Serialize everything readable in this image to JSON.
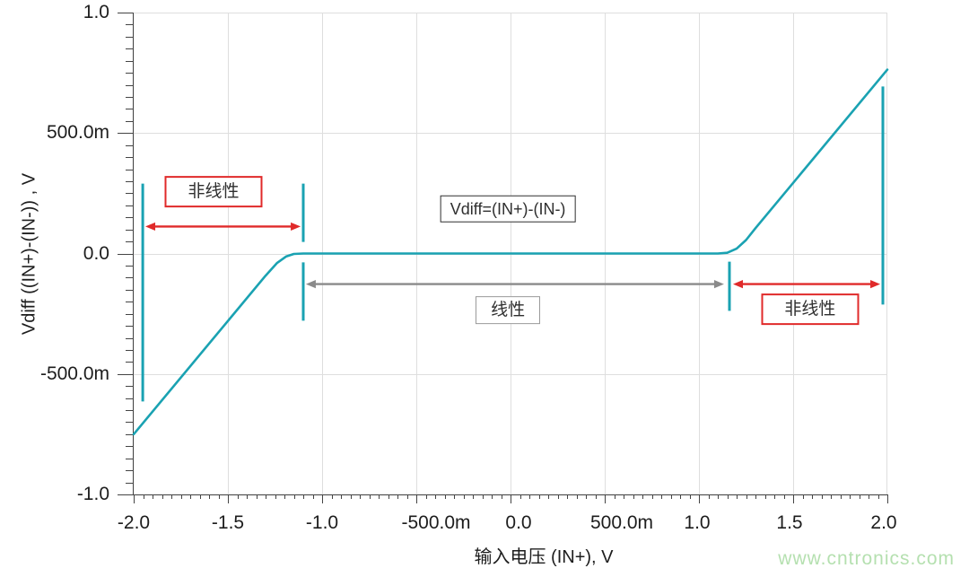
{
  "watermark": "www.cntronics.com",
  "chart_data": {
    "type": "line",
    "title": "",
    "xlabel": "输入电压  (IN+), V",
    "ylabel": "Vdiff ((IN+)-(IN-)) , V",
    "xlim": [
      -2.0,
      2.0
    ],
    "ylim": [
      -1.0,
      1.0
    ],
    "grid": true,
    "legend": "none",
    "line_color": "#1aa2b2",
    "axis_color": "#3f3f3f",
    "grid_color": "#dedede",
    "x_axis": {
      "min": -2.0,
      "max": 2.0,
      "minor_step": 0.05,
      "ticks": [
        {
          "v": -2.0,
          "label": "-2.0",
          "dx": 0
        },
        {
          "v": -1.5,
          "label": "-1.5",
          "dx": 0
        },
        {
          "v": -1.0,
          "label": "-1.0",
          "dx": 0
        },
        {
          "v": -0.5,
          "label": "-500.0m",
          "dx": 22
        },
        {
          "v": 0.0,
          "label": "0.0",
          "dx": 9
        },
        {
          "v": 0.5,
          "label": "500.0m",
          "dx": 19
        },
        {
          "v": 1.0,
          "label": "1.0",
          "dx": -2
        },
        {
          "v": 1.5,
          "label": "1.5",
          "dx": -4
        },
        {
          "v": 2.0,
          "label": "2.0",
          "dx": -4
        }
      ]
    },
    "y_axis": {
      "min": -1.0,
      "max": 1.0,
      "minor_step": 0.05,
      "ticks": [
        {
          "v": 1.0,
          "label": "1.0"
        },
        {
          "v": 0.5,
          "label": "500.0m"
        },
        {
          "v": 0.0,
          "label": "0.0"
        },
        {
          "v": -0.5,
          "label": "-500.0m"
        },
        {
          "v": -1.0,
          "label": "-1.0"
        }
      ]
    },
    "series": [
      {
        "name": "Vdiff",
        "color": "#1aa2b2",
        "points": [
          [
            -2.0,
            -0.75
          ],
          [
            -1.3,
            -0.092
          ],
          [
            -1.24,
            -0.04
          ],
          [
            -1.19,
            -0.012
          ],
          [
            -1.15,
            -0.002
          ],
          [
            -1.1,
            0.0
          ],
          [
            1.1,
            0.0
          ],
          [
            1.15,
            0.003
          ],
          [
            1.2,
            0.02
          ],
          [
            1.25,
            0.056
          ],
          [
            1.3,
            0.105
          ],
          [
            2.0,
            0.763
          ]
        ]
      }
    ],
    "markers": [
      {
        "x": -1.952,
        "y1": 0.29,
        "y2": -0.614
      },
      {
        "x": -1.1,
        "y1": 0.29,
        "y2": 0.048
      },
      {
        "x": -1.1,
        "y1": -0.037,
        "y2": -0.279
      },
      {
        "x": 1.162,
        "y1": -0.034,
        "y2": -0.238
      },
      {
        "x": 1.976,
        "y1": 0.693,
        "y2": -0.212
      }
    ],
    "annotations": {
      "arrows": [
        {
          "id": "nonlinear-left",
          "x1": -1.938,
          "x2": -1.114,
          "y": 0.112,
          "color": "#e02a2a"
        },
        {
          "id": "linear",
          "x1": -1.086,
          "x2": 1.133,
          "y": -0.127,
          "color": "#8a8a8a"
        },
        {
          "id": "nonlinear-right",
          "x1": 1.181,
          "x2": 1.962,
          "y": -0.127,
          "color": "#e02a2a"
        }
      ],
      "labels": [
        {
          "id": "nonlinear-left",
          "text": "非线性",
          "x": -1.576,
          "y": 0.257,
          "style": "red"
        },
        {
          "id": "formula",
          "text": "Vdiff=(IN+)-(IN-)",
          "x": -0.014,
          "y": 0.186,
          "style": "dark"
        },
        {
          "id": "linear",
          "text": "线性",
          "x": -0.014,
          "y": -0.235,
          "style": "gray"
        },
        {
          "id": "nonlinear-right",
          "text": "非线性",
          "x": 1.59,
          "y": -0.231,
          "style": "red"
        }
      ]
    }
  }
}
